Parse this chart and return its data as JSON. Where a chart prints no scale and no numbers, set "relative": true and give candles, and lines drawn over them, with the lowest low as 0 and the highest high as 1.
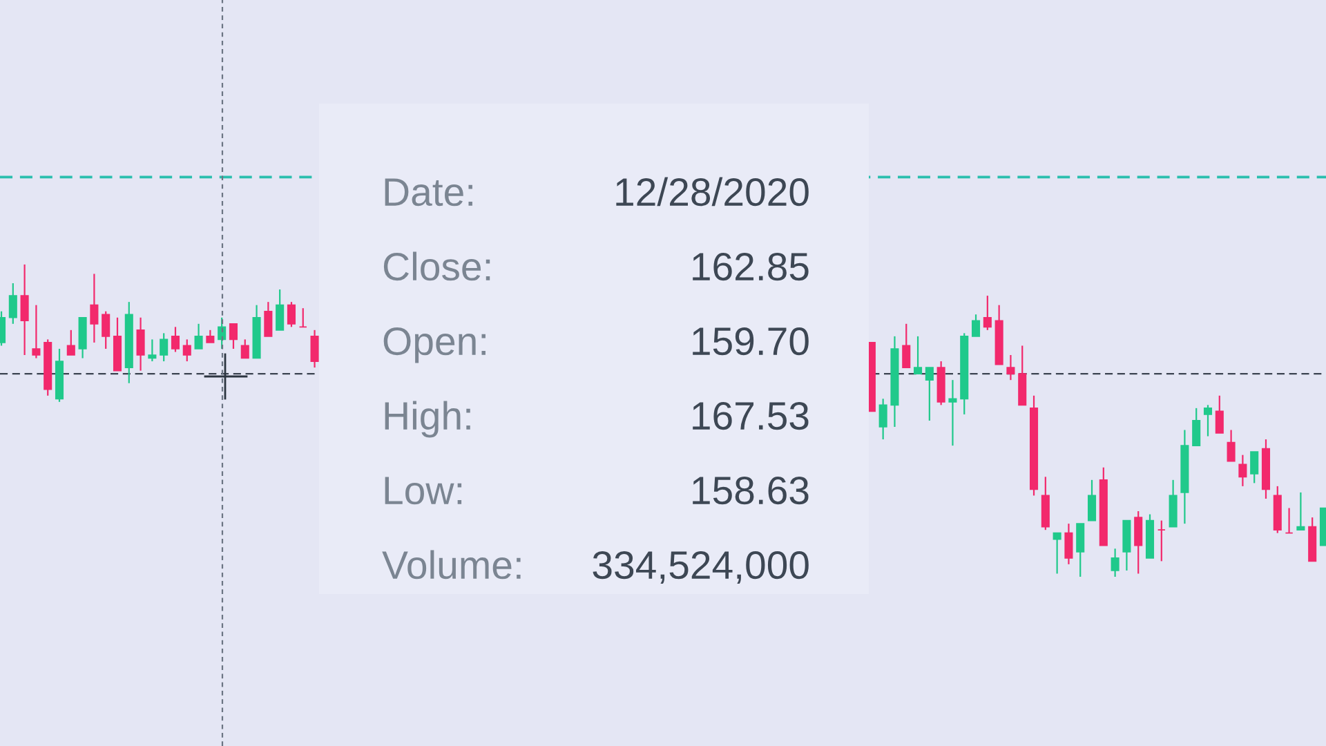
{
  "chart_data": {
    "type": "candlestick",
    "relative": true,
    "categories": [
      null,
      null,
      null,
      null,
      null,
      null,
      null,
      null,
      null,
      null,
      null,
      null,
      null,
      null,
      null,
      null,
      null,
      null,
      null,
      null,
      null,
      null,
      null,
      null,
      null,
      null,
      null,
      null,
      null,
      null,
      null,
      null,
      null,
      null,
      null,
      null,
      null,
      null,
      null,
      null,
      null,
      null,
      null,
      null,
      null,
      null,
      null,
      null,
      null,
      null,
      null,
      null,
      null,
      null,
      null,
      null,
      null,
      null,
      null,
      null,
      null,
      null,
      null,
      null,
      null,
      null,
      null,
      null,
      null,
      null,
      null,
      null,
      null,
      null,
      null,
      null,
      null,
      null,
      null,
      null,
      null,
      null,
      null,
      null,
      null,
      null,
      null,
      null,
      null,
      null,
      null,
      null,
      null,
      null,
      null,
      null,
      null,
      null,
      null,
      null,
      null,
      null,
      null,
      null,
      null,
      null,
      null,
      null,
      null,
      null,
      null,
      null,
      null,
      null,
      null
    ],
    "ohlc": [
      [
        0.75,
        0.85,
        0.74,
        0.83
      ],
      [
        0.83,
        0.94,
        0.81,
        0.9
      ],
      [
        0.9,
        1.0,
        0.71,
        0.82
      ],
      [
        0.73,
        0.87,
        0.7,
        0.71
      ],
      [
        0.75,
        0.76,
        0.58,
        0.6
      ],
      [
        0.57,
        0.73,
        0.56,
        0.69
      ],
      [
        0.74,
        0.79,
        0.71,
        0.71
      ],
      [
        0.73,
        0.83,
        0.7,
        0.83
      ],
      [
        0.87,
        0.97,
        0.75,
        0.81
      ],
      [
        0.84,
        0.85,
        0.73,
        0.77
      ],
      [
        0.77,
        0.83,
        0.66,
        0.66
      ],
      [
        0.67,
        0.88,
        0.62,
        0.84
      ],
      [
        0.79,
        0.83,
        0.66,
        0.71
      ],
      [
        0.7,
        0.76,
        0.69,
        0.71
      ],
      [
        0.71,
        0.78,
        0.69,
        0.76
      ],
      [
        0.77,
        0.8,
        0.72,
        0.73
      ],
      [
        0.74,
        0.76,
        0.69,
        0.71
      ],
      [
        0.73,
        0.81,
        0.73,
        0.77
      ],
      [
        0.77,
        0.79,
        0.75,
        0.75
      ],
      [
        0.76,
        0.83,
        0.73,
        0.8
      ],
      [
        0.81,
        0.81,
        0.73,
        0.76
      ],
      [
        0.74,
        0.76,
        0.7,
        0.7
      ],
      [
        0.7,
        0.87,
        0.7,
        0.83
      ],
      [
        0.85,
        0.88,
        0.77,
        0.77
      ],
      [
        0.79,
        0.92,
        0.79,
        0.87
      ],
      [
        0.87,
        0.88,
        0.8,
        0.81
      ],
      [
        0.8,
        0.86,
        0.8,
        0.8
      ],
      [
        0.77,
        0.79,
        0.67,
        0.69
      ],
      null,
      null,
      null,
      null,
      null,
      null,
      null,
      null,
      null,
      null,
      null,
      null,
      null,
      null,
      null,
      null,
      null,
      null,
      null,
      null,
      null,
      null,
      null,
      null,
      null,
      null,
      null,
      null,
      null,
      null,
      null,
      null,
      null,
      null,
      null,
      null,
      null,
      null,
      null,
      null,
      null,
      null,
      null,
      null,
      null,
      null,
      null,
      [
        0.75,
        0.75,
        0.53,
        0.53
      ],
      [
        0.48,
        0.57,
        0.44,
        0.55
      ],
      [
        0.55,
        0.77,
        0.48,
        0.73
      ],
      [
        0.74,
        0.81,
        0.67,
        0.67
      ],
      [
        0.65,
        0.77,
        0.65,
        0.67
      ],
      [
        0.63,
        0.67,
        0.5,
        0.67
      ],
      [
        0.67,
        0.69,
        0.55,
        0.56
      ],
      [
        0.56,
        0.63,
        0.42,
        0.57
      ],
      [
        0.57,
        0.78,
        0.52,
        0.77
      ],
      [
        0.77,
        0.84,
        0.77,
        0.82
      ],
      [
        0.83,
        0.9,
        0.79,
        0.8
      ],
      [
        0.82,
        0.87,
        0.68,
        0.68
      ],
      [
        0.67,
        0.71,
        0.63,
        0.65
      ],
      [
        0.65,
        0.74,
        0.55,
        0.55
      ],
      [
        0.54,
        0.58,
        0.26,
        0.28
      ],
      [
        0.26,
        0.32,
        0.15,
        0.16
      ],
      [
        0.12,
        0.14,
        0.01,
        0.14
      ],
      [
        0.14,
        0.17,
        0.04,
        0.06
      ],
      [
        0.08,
        0.17,
        0.0,
        0.17
      ],
      [
        0.18,
        0.31,
        0.18,
        0.26
      ],
      [
        0.31,
        0.35,
        0.1,
        0.1
      ],
      [
        0.02,
        0.09,
        0.0,
        0.06
      ],
      [
        0.08,
        0.18,
        0.02,
        0.18
      ],
      [
        0.19,
        0.21,
        0.01,
        0.1
      ],
      [
        0.06,
        0.2,
        0.06,
        0.18
      ],
      [
        0.15,
        0.18,
        0.05,
        0.15
      ],
      [
        0.16,
        0.31,
        0.16,
        0.26
      ],
      [
        0.27,
        0.47,
        0.17,
        0.42
      ],
      [
        0.42,
        0.54,
        0.42,
        0.5
      ],
      [
        0.52,
        0.55,
        0.45,
        0.54
      ],
      [
        0.53,
        0.58,
        0.46,
        0.46
      ],
      [
        0.43,
        0.47,
        0.37,
        0.37
      ],
      [
        0.36,
        0.39,
        0.29,
        0.32
      ],
      [
        0.33,
        0.4,
        0.3,
        0.4
      ],
      [
        0.41,
        0.44,
        0.25,
        0.28
      ],
      [
        0.26,
        0.29,
        0.14,
        0.15
      ],
      [
        0.14,
        0.22,
        0.14,
        0.14
      ],
      [
        0.15,
        0.27,
        0.15,
        0.16
      ],
      [
        0.16,
        0.19,
        0.05,
        0.05
      ],
      [
        0.1,
        0.22,
        0.1,
        0.22
      ]
    ],
    "colors": [
      "#20c98b",
      "#20c98b",
      "#f2296c",
      "#f2296c",
      "#f2296c",
      "#20c98b",
      "#f2296c",
      "#20c98b",
      "#f2296c",
      "#f2296c",
      "#f2296c",
      "#20c98b",
      "#f2296c",
      "#20c98b",
      "#20c98b",
      "#f2296c",
      "#f2296c",
      "#20c98b",
      "#f2296c",
      "#20c98b",
      "#f2296c",
      "#f2296c",
      "#20c98b",
      "#f2296c",
      "#20c98b",
      "#f2296c",
      "#f2296c",
      "#f2296c",
      null,
      null,
      null,
      null,
      null,
      null,
      null,
      null,
      null,
      null,
      null,
      null,
      null,
      null,
      null,
      null,
      null,
      null,
      null,
      null,
      null,
      null,
      null,
      null,
      null,
      null,
      null,
      null,
      null,
      null,
      null,
      null,
      null,
      null,
      null,
      null,
      null,
      null,
      null,
      null,
      null,
      null,
      null,
      null,
      null,
      null,
      null,
      "#f2296c",
      "#20c98b",
      "#20c98b",
      "#f2296c",
      "#20c98b",
      "#20c98b",
      "#f2296c",
      "#20c98b",
      "#20c98b",
      "#20c98b",
      "#f2296c",
      "#f2296c",
      "#f2296c",
      "#f2296c",
      "#f2296c",
      "#f2296c",
      "#20c98b",
      "#f2296c",
      "#20c98b",
      "#20c98b",
      "#f2296c",
      "#20c98b",
      "#20c98b",
      "#f2296c",
      "#20c98b",
      "#f2296c",
      "#20c98b",
      "#20c98b",
      "#20c98b",
      "#20c98b",
      "#f2296c",
      "#f2296c",
      "#f2296c",
      "#20c98b",
      "#f2296c",
      "#f2296c",
      "#f2296c",
      "#20c98b",
      "#f2296c",
      "#20c98b"
    ],
    "ref_lines": [
      {
        "axis": "y",
        "value": 1.28,
        "color": "#2bbfae",
        "line_style": "dashed"
      },
      {
        "axis": "y",
        "value": 0.65,
        "color": "#3b4350",
        "line_style": "dashed"
      }
    ],
    "annotations": [
      "Date:",
      "12/28/2020",
      "Close:",
      "162.85",
      "Open:",
      "159.70",
      "High:",
      "167.53",
      "Low:",
      "158.63",
      "Volume:",
      "334,524,000"
    ]
  }
}
